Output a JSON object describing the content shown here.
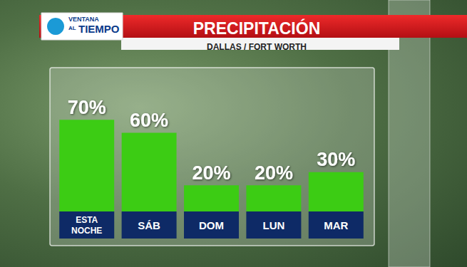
{
  "chart_data": {
    "type": "bar",
    "title": "PRECIPITACIÓN",
    "subtitle": "DALLAS / FORT WORTH",
    "logo": [
      "VENTANA",
      "AL",
      "TIEMPO"
    ],
    "categories": [
      "ESTA NOCHE",
      "SÁB",
      "DOM",
      "LUN",
      "MAR"
    ],
    "values": [
      70,
      60,
      20,
      20,
      30
    ],
    "value_labels": [
      "70%",
      "60%",
      "20%",
      "20%",
      "30%"
    ],
    "color": "#3ccc14",
    "ylim": [
      0,
      100
    ],
    "grid": false,
    "data_labels": true,
    "tick_labels": "x"
  }
}
